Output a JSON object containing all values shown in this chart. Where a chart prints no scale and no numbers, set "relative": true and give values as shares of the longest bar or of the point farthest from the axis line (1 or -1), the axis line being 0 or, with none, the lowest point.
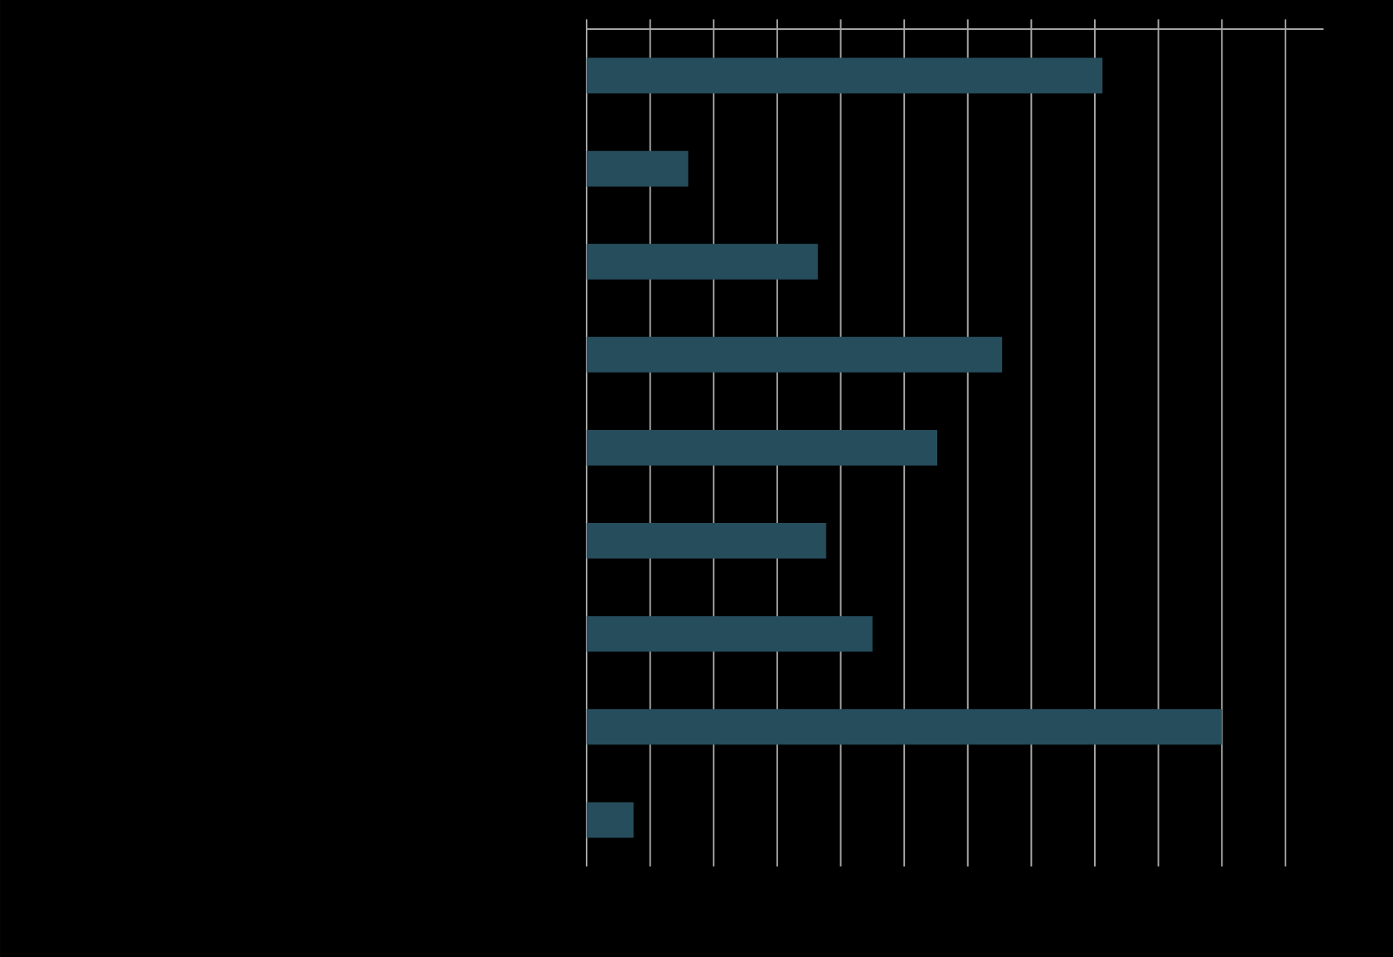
{
  "chart_data": {
    "type": "bar",
    "orientation": "horizontal",
    "relative": true,
    "grid": "x",
    "categories": [
      null,
      null,
      null,
      null,
      null,
      null,
      null,
      null,
      null
    ],
    "values": [
      0.812,
      0.16,
      0.364,
      0.654,
      0.552,
      0.377,
      0.45,
      1.0,
      0.074
    ],
    "color": "#264d5c"
  }
}
